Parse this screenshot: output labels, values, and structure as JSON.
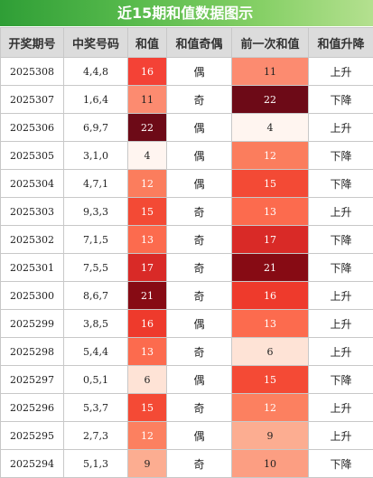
{
  "title": "近15期和值数据图示",
  "headers": [
    "开奖期号",
    "中奖号码",
    "和值",
    "和值奇偶",
    "前一次和值",
    "和值升降"
  ],
  "rows": [
    {
      "period": "2025308",
      "numbers": "4,4,8",
      "sum": "16",
      "parity": "偶",
      "prev_sum": "11",
      "trend": "上升",
      "sum_color": "#f44236",
      "sum_text_color": "#ffffff",
      "prev_color": "#fc8b70",
      "prev_text_color": "#222222"
    },
    {
      "period": "2025307",
      "numbers": "1,6,4",
      "sum": "11",
      "parity": "奇",
      "prev_sum": "22",
      "trend": "下降",
      "sum_color": "#fc8b70",
      "sum_text_color": "#222222",
      "prev_color": "#6d0a17",
      "prev_text_color": "#ffffff"
    },
    {
      "period": "2025306",
      "numbers": "6,9,7",
      "sum": "22",
      "parity": "偶",
      "prev_sum": "4",
      "trend": "上升",
      "sum_color": "#6d0a17",
      "sum_text_color": "#ffffff",
      "prev_color": "#fff5f0",
      "prev_text_color": "#222222"
    },
    {
      "period": "2025305",
      "numbers": "3,1,0",
      "sum": "4",
      "parity": "偶",
      "prev_sum": "12",
      "trend": "下降",
      "sum_color": "#fff5f0",
      "sum_text_color": "#222222",
      "prev_color": "#fb7d5d",
      "prev_text_color": "#ffffff"
    },
    {
      "period": "2025304",
      "numbers": "4,7,1",
      "sum": "12",
      "parity": "偶",
      "prev_sum": "15",
      "trend": "下降",
      "sum_color": "#fb7d5d",
      "sum_text_color": "#ffffff",
      "prev_color": "#f34a35",
      "prev_text_color": "#ffffff"
    },
    {
      "period": "2025303",
      "numbers": "9,3,3",
      "sum": "15",
      "parity": "奇",
      "prev_sum": "13",
      "trend": "上升",
      "sum_color": "#f34a35",
      "sum_text_color": "#ffffff",
      "prev_color": "#fc6b4e",
      "prev_text_color": "#ffffff"
    },
    {
      "period": "2025302",
      "numbers": "7,1,5",
      "sum": "13",
      "parity": "奇",
      "prev_sum": "17",
      "trend": "下降",
      "sum_color": "#fc6b4e",
      "sum_text_color": "#ffffff",
      "prev_color": "#d92a27",
      "prev_text_color": "#ffffff"
    },
    {
      "period": "2025301",
      "numbers": "7,5,5",
      "sum": "17",
      "parity": "奇",
      "prev_sum": "21",
      "trend": "下降",
      "sum_color": "#d92a27",
      "sum_text_color": "#ffffff",
      "prev_color": "#870b14",
      "prev_text_color": "#ffffff"
    },
    {
      "period": "2025300",
      "numbers": "8,6,7",
      "sum": "21",
      "parity": "奇",
      "prev_sum": "16",
      "trend": "上升",
      "sum_color": "#870b14",
      "sum_text_color": "#ffffff",
      "prev_color": "#ee3a2c",
      "prev_text_color": "#ffffff"
    },
    {
      "period": "2025299",
      "numbers": "3,8,5",
      "sum": "16",
      "parity": "偶",
      "prev_sum": "13",
      "trend": "上升",
      "sum_color": "#ee3a2c",
      "sum_text_color": "#ffffff",
      "prev_color": "#fc6b4e",
      "prev_text_color": "#ffffff"
    },
    {
      "period": "2025298",
      "numbers": "5,4,4",
      "sum": "13",
      "parity": "奇",
      "prev_sum": "6",
      "trend": "上升",
      "sum_color": "#fc6b4e",
      "sum_text_color": "#ffffff",
      "prev_color": "#fee3d6",
      "prev_text_color": "#222222"
    },
    {
      "period": "2025297",
      "numbers": "0,5,1",
      "sum": "6",
      "parity": "偶",
      "prev_sum": "15",
      "trend": "下降",
      "sum_color": "#fee3d6",
      "sum_text_color": "#222222",
      "prev_color": "#f44a35",
      "prev_text_color": "#ffffff"
    },
    {
      "period": "2025296",
      "numbers": "5,3,7",
      "sum": "15",
      "parity": "奇",
      "prev_sum": "12",
      "trend": "上升",
      "sum_color": "#f44a35",
      "sum_text_color": "#ffffff",
      "prev_color": "#fc8060",
      "prev_text_color": "#ffffff"
    },
    {
      "period": "2025295",
      "numbers": "2,7,3",
      "sum": "12",
      "parity": "偶",
      "prev_sum": "9",
      "trend": "上升",
      "sum_color": "#fc8060",
      "sum_text_color": "#ffffff",
      "prev_color": "#fcad91",
      "prev_text_color": "#222222"
    },
    {
      "period": "2025294",
      "numbers": "5,1,3",
      "sum": "9",
      "parity": "奇",
      "prev_sum": "10",
      "trend": "下降",
      "sum_color": "#fcad91",
      "sum_text_color": "#222222",
      "prev_color": "#fc9e82",
      "prev_text_color": "#222222"
    }
  ]
}
